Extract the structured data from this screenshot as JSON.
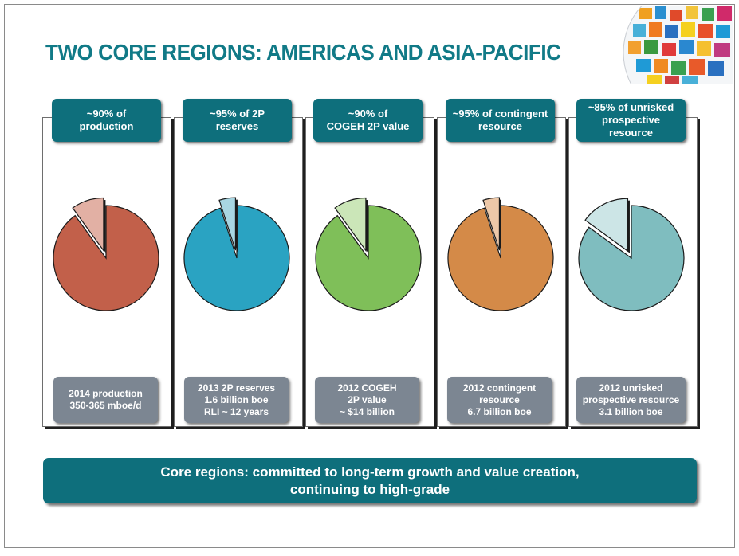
{
  "title": "TWO CORE REGIONS: AMERICAS AND ASIA-PACIFIC",
  "banner": "Core regions: committed to long-term growth and value creation,\ncontinuing to high-grade",
  "panels": [
    {
      "header": "~90% of\nproduction",
      "footer": "2014 production\n350-365 mboe/d"
    },
    {
      "header": "~95% of 2P\nreserves",
      "footer": "2013 2P reserves\n1.6 billion boe\nRLI ~ 12 years"
    },
    {
      "header": "~90% of\nCOGEH 2P value",
      "footer": "2012 COGEH\n2P value\n~ $14 billion"
    },
    {
      "header": "~95% of contingent\nresource",
      "footer": "2012 contingent\nresource\n6.7 billion boe"
    },
    {
      "header": "~85% of unrisked\nprospective\nresource",
      "footer": "2012 unrisked\nprospective resource\n3.1 billion boe"
    }
  ],
  "chart_data": [
    {
      "type": "pie",
      "values": [
        90,
        10
      ],
      "main_color": "#c2604a",
      "slice_color": "#e2b0a4"
    },
    {
      "type": "pie",
      "values": [
        95,
        5
      ],
      "main_color": "#2aa3c2",
      "slice_color": "#a8d6e2"
    },
    {
      "type": "pie",
      "values": [
        90,
        10
      ],
      "main_color": "#7fbf59",
      "slice_color": "#cbe6b8"
    },
    {
      "type": "pie",
      "values": [
        95,
        5
      ],
      "main_color": "#d48a48",
      "slice_color": "#edc8a8"
    },
    {
      "type": "pie",
      "values": [
        85,
        15
      ],
      "main_color": "#7fbdbf",
      "slice_color": "#cce5e6"
    }
  ]
}
